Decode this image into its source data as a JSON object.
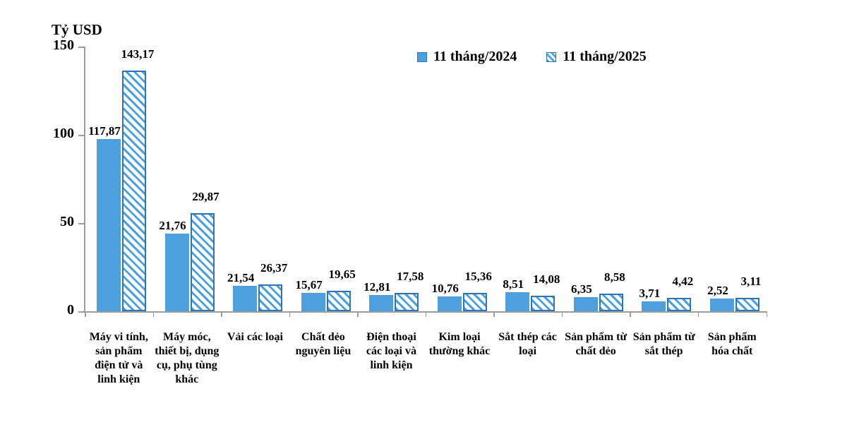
{
  "chart_data": {
    "type": "bar",
    "axis_title": "Tỷ USD",
    "ylim": [
      0,
      150
    ],
    "yticks": [
      {
        "value": 0,
        "label": "0"
      },
      {
        "value": 50,
        "label": "50"
      },
      {
        "value": 100,
        "label": "100"
      },
      {
        "value": 150,
        "label": "150"
      }
    ],
    "grid": false,
    "legend_position": "top-center",
    "legend": [
      {
        "label": "11 tháng/2024",
        "swatch": "solid"
      },
      {
        "label": "11 tháng/2025",
        "swatch": "hatched"
      }
    ],
    "categories": [
      "Máy vi tính, sản phẩm điện tử và linh kiện",
      "Máy móc, thiết bị, dụng cụ, phụ tùng khác",
      "Vải các loại",
      "Chất dẻo nguyên liệu",
      "Điện thoại các loại và linh kiện",
      "Kim loại thường khác",
      "Sắt thép các loại",
      "Sản phẩm từ chất dẻo",
      "Sản phẩm từ sắt thép",
      "Sản phẩm hóa chất"
    ],
    "series": [
      {
        "name": "11 tháng/2024",
        "style": "solid",
        "values": [
          117.87,
          21.76,
          21.54,
          15.67,
          12.81,
          10.76,
          8.51,
          6.35,
          3.71,
          2.52
        ],
        "value_labels": [
          "117,87",
          "21,76",
          "21,54",
          "15,67",
          "12,81",
          "10,76",
          "8,51",
          "6,35",
          "3,71",
          "2,52"
        ],
        "drawn_heights": [
          97.6,
          44.0,
          14.4,
          10.4,
          9.4,
          8.4,
          10.8,
          8.1,
          5.7,
          7.2
        ]
      },
      {
        "name": "11 tháng/2025",
        "style": "hatched",
        "values": [
          143.17,
          29.87,
          26.37,
          19.65,
          17.58,
          15.36,
          14.08,
          8.58,
          4.42,
          3.11
        ],
        "value_labels": [
          "143,17",
          "29,87",
          "26,37",
          "19,65",
          "17,58",
          "15,36",
          "14,08",
          "8,58",
          "4,42",
          "3,11"
        ],
        "drawn_heights": [
          136.6,
          55.6,
          15.2,
          11.8,
          10.4,
          10.4,
          9.0,
          10.0,
          7.7,
          7.6
        ]
      }
    ],
    "colors": {
      "bar_fill": "#4DA0DD",
      "bar_border": "#2E75B6",
      "hatch_bg": "#FFFFFF",
      "axis_line": "#9C9C9C",
      "text": "#000000"
    }
  }
}
